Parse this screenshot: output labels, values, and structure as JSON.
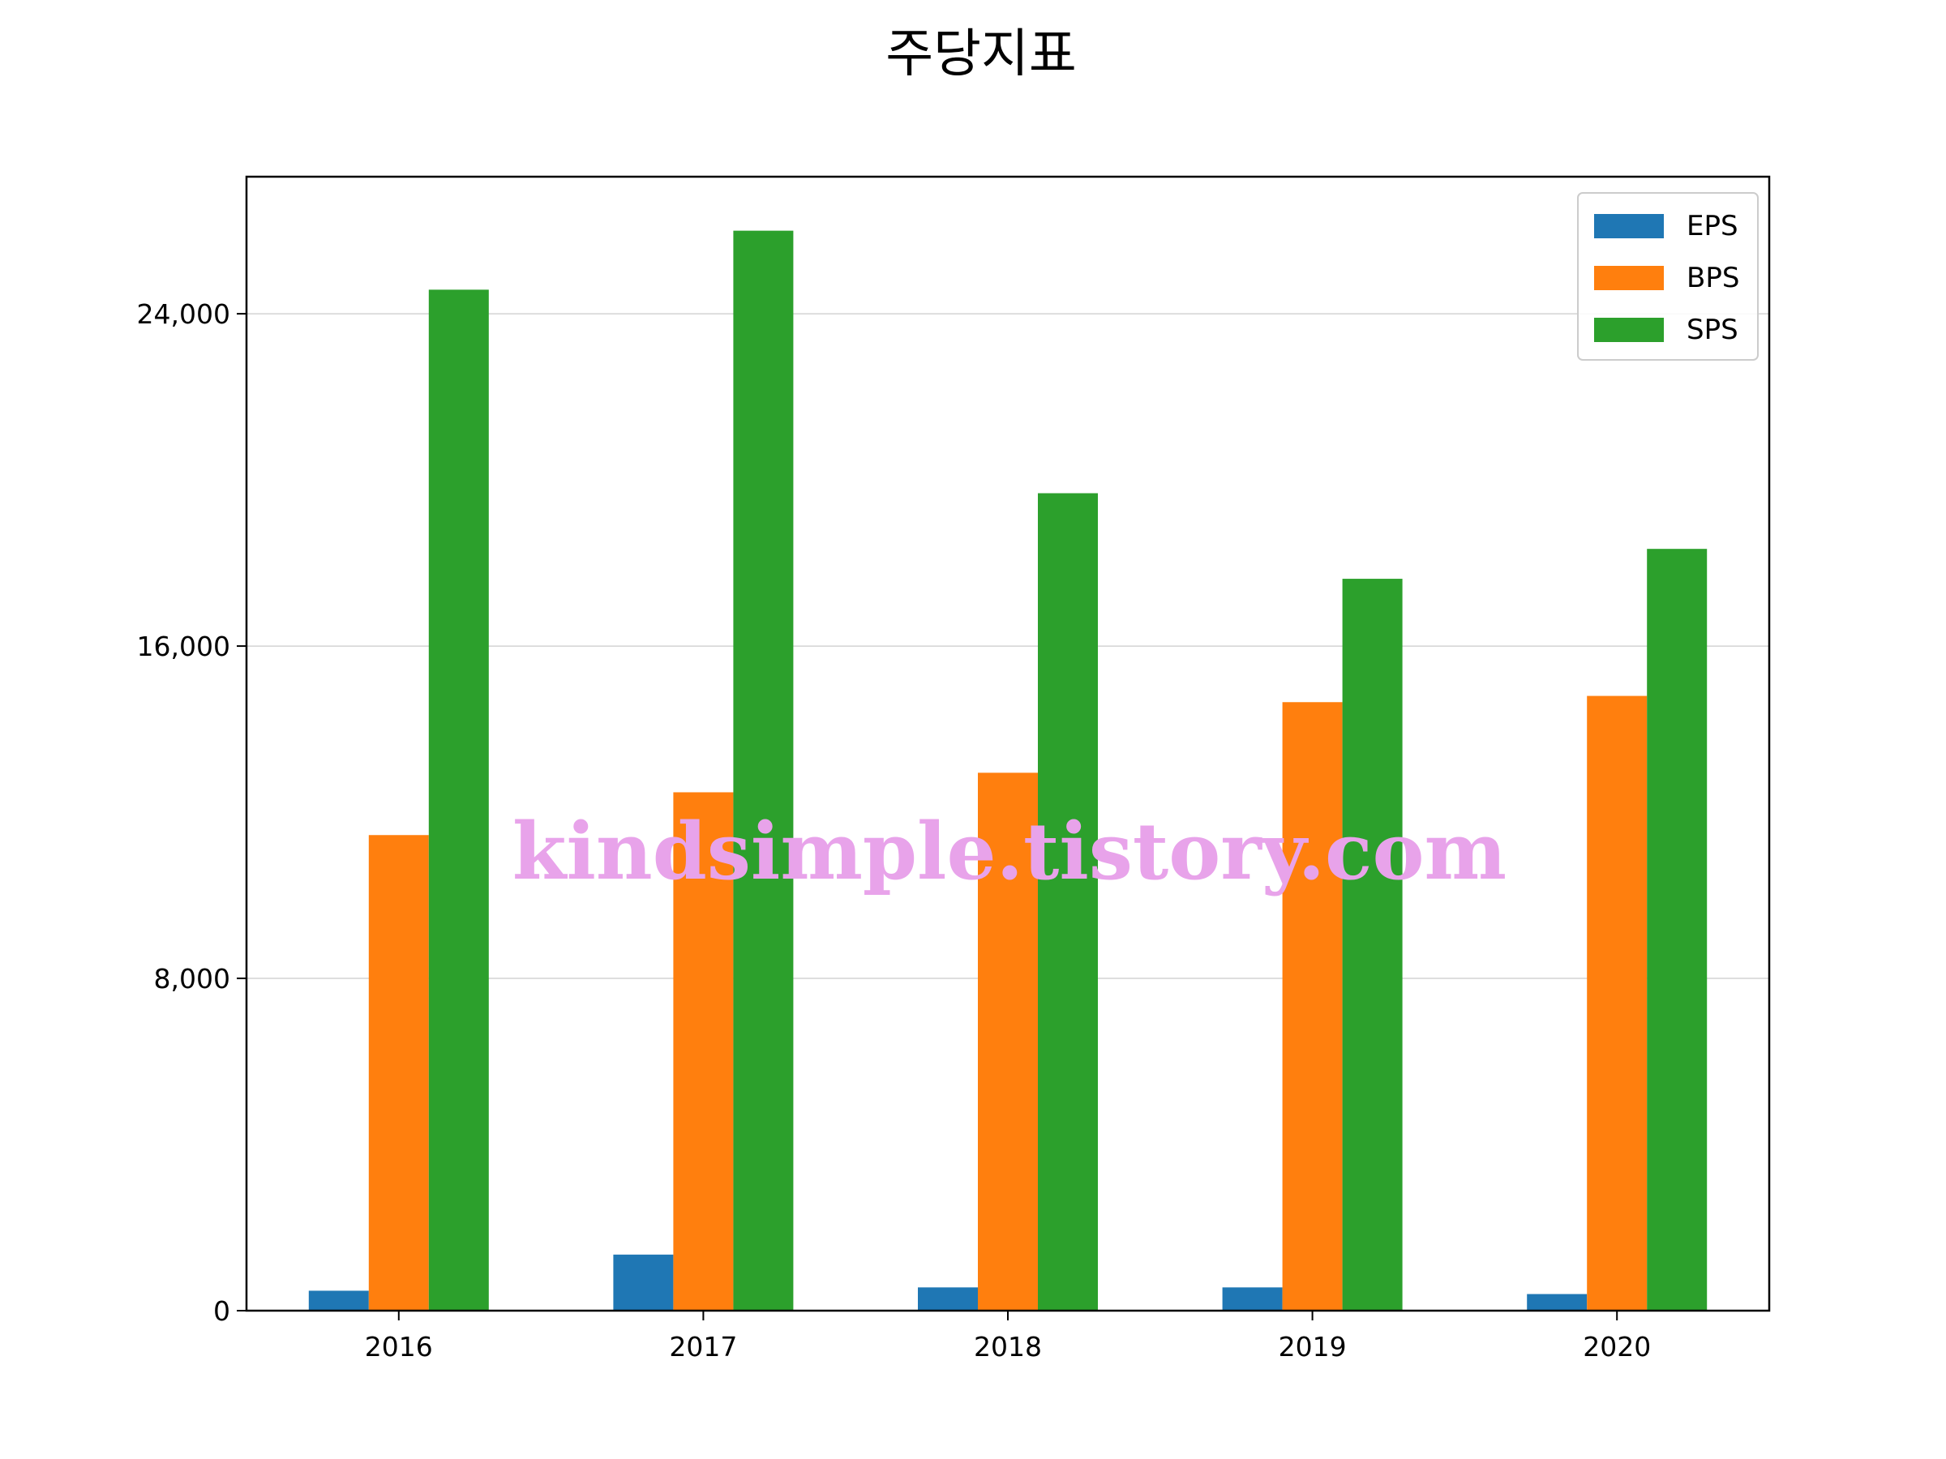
{
  "chart_data": {
    "type": "bar",
    "title": "주당지표",
    "xlabel": "",
    "ylabel": "",
    "categories": [
      "2016",
      "2017",
      "2018",
      "2019",
      "2020"
    ],
    "series": [
      {
        "name": "EPS",
        "color": "#1f77b4",
        "values": [
          480,
          1350,
          560,
          560,
          400
        ]
      },
      {
        "name": "BPS",
        "color": "#ff7f0e",
        "values": [
          11450,
          12480,
          12950,
          14650,
          14800
        ]
      },
      {
        "name": "SPS",
        "color": "#2ca02c",
        "values": [
          24580,
          26000,
          19680,
          17620,
          18340
        ]
      }
    ],
    "ylim": [
      0,
      27300
    ],
    "yticks": [
      0,
      8000,
      16000,
      24000
    ],
    "ytick_labels": [
      "0",
      "8,000",
      "16,000",
      "24,000"
    ],
    "grid": "y-major",
    "legend_position": "top-right",
    "watermark": "kindsimple.tistory.com"
  }
}
